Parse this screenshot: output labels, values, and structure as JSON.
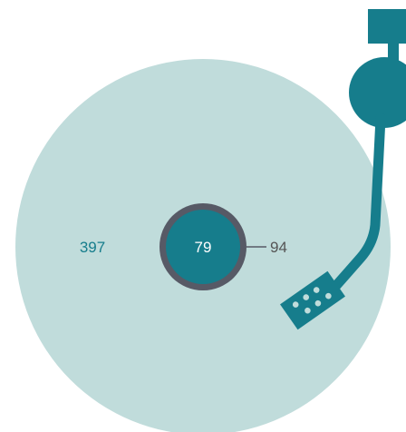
{
  "figure": {
    "labels": {
      "outer": "397",
      "center": "79",
      "ring": "94"
    }
  },
  "colors": {
    "disc": "#c0dcdb",
    "teal": "#167d8c",
    "ring": "#575a66",
    "label_teal": "#167d8c",
    "label_dark": "#555555",
    "dots": "#c0dcdb",
    "white": "#ffffff"
  }
}
